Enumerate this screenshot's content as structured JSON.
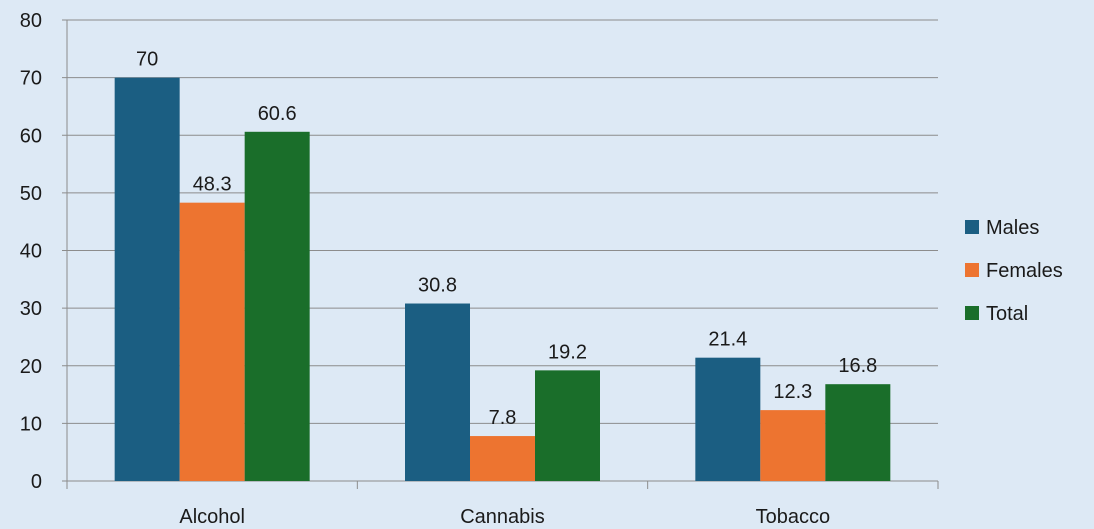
{
  "chart_data": {
    "type": "bar",
    "categories": [
      "Alcohol",
      "Cannabis",
      "Tobacco"
    ],
    "series": [
      {
        "name": "Males",
        "values": [
          70,
          30.8,
          21.4
        ],
        "color": "#1b5e82"
      },
      {
        "name": "Females",
        "values": [
          48.3,
          7.8,
          12.3
        ],
        "color": "#ed7430"
      },
      {
        "name": "Total",
        "values": [
          60.6,
          19.2,
          16.8
        ],
        "color": "#1a6e2a"
      }
    ],
    "data_labels": [
      [
        "70",
        "30.8",
        "21.4"
      ],
      [
        "48.3",
        "7.8",
        "12.3"
      ],
      [
        "60.6",
        "19.2",
        "16.8"
      ]
    ],
    "y_ticks": [
      "0",
      "10",
      "20",
      "30",
      "40",
      "50",
      "60",
      "70",
      "80"
    ],
    "ylim": [
      0,
      80
    ],
    "title": "",
    "xlabel": "",
    "ylabel": "",
    "grid": true,
    "legend_position": "right",
    "colors": {
      "background": "#dde9f5",
      "grid": "#8c8c8c",
      "text": "#1a1a1a"
    }
  }
}
